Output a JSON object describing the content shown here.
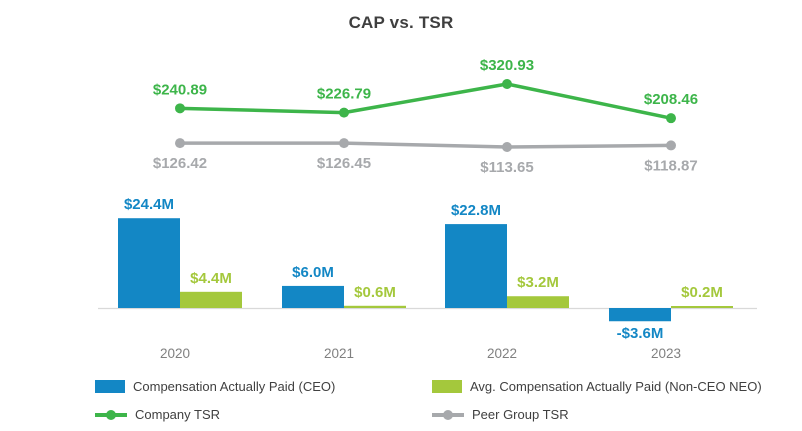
{
  "title": "CAP vs. TSR",
  "colors": {
    "ceo_bar": "#1387c5",
    "neo_bar": "#a4c83c",
    "company_tsr": "#3db54a",
    "peer_tsr": "#a7a9ac",
    "title_text": "#3f3f3f",
    "axis_label": "#808080",
    "legend_text": "#404040",
    "axis_line": "#d9d9d9",
    "background": "#ffffff"
  },
  "chart_data": {
    "type": "combo-bar-line",
    "title": "CAP vs. TSR",
    "categories": [
      "2020",
      "2021",
      "2022",
      "2023"
    ],
    "bar_series": [
      {
        "name": "Compensation Actually Paid (CEO)",
        "values": [
          24.4,
          6.0,
          22.8,
          -3.6
        ],
        "labels": [
          "$24.4M",
          "$6.0M",
          "$22.8M",
          "-$3.6M"
        ],
        "color_key": "ceo_bar"
      },
      {
        "name": "Avg. Compensation Actually Paid (Non-CEO NEO)",
        "values": [
          4.4,
          0.6,
          3.2,
          0.2
        ],
        "labels": [
          "$4.4M",
          "$0.6M",
          "$3.2M",
          "$0.2M"
        ],
        "color_key": "neo_bar"
      }
    ],
    "line_series": [
      {
        "name": "Company TSR",
        "values": [
          240.89,
          226.79,
          320.93,
          208.46
        ],
        "labels": [
          "$240.89",
          "$226.79",
          "$320.93",
          "$208.46"
        ],
        "color_key": "company_tsr",
        "label_position": "above"
      },
      {
        "name": "Peer Group TSR",
        "values": [
          126.42,
          126.45,
          113.65,
          118.87
        ],
        "labels": [
          "$126.42",
          "$126.45",
          "$113.65",
          "$118.87"
        ],
        "color_key": "peer_tsr",
        "label_position": "below"
      }
    ],
    "bar_axis": {
      "min": -6,
      "max": 26,
      "gridlines": false
    },
    "line_axis": {
      "min": 100,
      "max": 340,
      "gridlines": false
    },
    "legend_position": "bottom"
  },
  "legend": {
    "items": [
      {
        "label": "Compensation Actually Paid (CEO)",
        "type": "bar",
        "color_key": "ceo_bar"
      },
      {
        "label": "Avg. Compensation Actually Paid (Non-CEO NEO)",
        "type": "bar",
        "color_key": "neo_bar"
      },
      {
        "label": "Company TSR",
        "type": "line",
        "color_key": "company_tsr"
      },
      {
        "label": "Peer Group TSR",
        "type": "line",
        "color_key": "peer_tsr"
      }
    ]
  }
}
